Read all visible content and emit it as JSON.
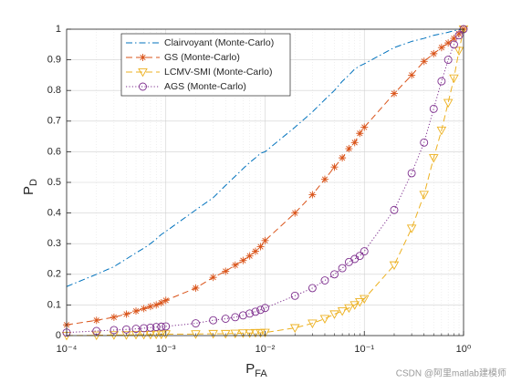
{
  "chart_data": {
    "type": "line",
    "xlabel": "P",
    "xlabel_sub": "FA",
    "ylabel": "P",
    "ylabel_sub": "D",
    "xscale": "log",
    "xlim": [
      0.0001,
      1
    ],
    "ylim": [
      0,
      1
    ],
    "xticks": [
      {
        "value": 0.0001,
        "label": "10⁻⁴"
      },
      {
        "value": 0.001,
        "label": "10⁻³"
      },
      {
        "value": 0.01,
        "label": "10⁻²"
      },
      {
        "value": 0.1,
        "label": "10⁻¹"
      },
      {
        "value": 1,
        "label": "10⁰"
      }
    ],
    "yticks": [
      0,
      0.1,
      0.2,
      0.3,
      0.4,
      0.5,
      0.6,
      0.7,
      0.8,
      0.9,
      1
    ],
    "grid": true,
    "minor_grid": true,
    "legend": "top-left",
    "x": [
      0.0001,
      0.0002,
      0.0003,
      0.0004,
      0.0005,
      0.0006,
      0.0007,
      0.0008,
      0.0009,
      0.001,
      0.002,
      0.003,
      0.004,
      0.005,
      0.006,
      0.007,
      0.008,
      0.009,
      0.01,
      0.02,
      0.03,
      0.04,
      0.05,
      0.06,
      0.07,
      0.08,
      0.09,
      0.1,
      0.2,
      0.3,
      0.4,
      0.5,
      0.6,
      0.7,
      0.8,
      0.9,
      1
    ],
    "series": [
      {
        "name": "Clairvoyant (Monte-Carlo)",
        "color": "#0072BD",
        "dash": "dashdot",
        "marker": "none",
        "values": [
          0.16,
          0.2,
          0.225,
          0.25,
          0.27,
          0.285,
          0.3,
          0.315,
          0.33,
          0.34,
          0.41,
          0.45,
          0.49,
          0.52,
          0.545,
          0.565,
          0.58,
          0.595,
          0.6,
          0.68,
          0.73,
          0.77,
          0.8,
          0.83,
          0.85,
          0.87,
          0.88,
          0.887,
          0.94,
          0.96,
          0.97,
          0.98,
          0.985,
          0.99,
          0.995,
          0.998,
          1
        ]
      },
      {
        "name": "GS (Monte-Carlo)",
        "color": "#D95319",
        "dash": "dashed",
        "marker": "asterisk",
        "values": [
          0.035,
          0.05,
          0.06,
          0.07,
          0.08,
          0.088,
          0.095,
          0.1,
          0.107,
          0.115,
          0.155,
          0.19,
          0.21,
          0.23,
          0.245,
          0.26,
          0.275,
          0.29,
          0.31,
          0.4,
          0.46,
          0.51,
          0.55,
          0.58,
          0.61,
          0.63,
          0.66,
          0.68,
          0.79,
          0.85,
          0.895,
          0.92,
          0.94,
          0.955,
          0.97,
          0.985,
          1
        ]
      },
      {
        "name": "LCMV-SMI (Monte-Carlo)",
        "color": "#EDB120",
        "dash": "dashed",
        "marker": "triangle-down",
        "values": [
          0,
          0.001,
          0.002,
          0.002,
          0.003,
          0.003,
          0.003,
          0.004,
          0.004,
          0.005,
          0.005,
          0.006,
          0.006,
          0.007,
          0.008,
          0.008,
          0.009,
          0.009,
          0.01,
          0.025,
          0.04,
          0.055,
          0.07,
          0.08,
          0.09,
          0.1,
          0.11,
          0.12,
          0.23,
          0.35,
          0.46,
          0.58,
          0.67,
          0.76,
          0.84,
          0.93,
          1
        ]
      },
      {
        "name": "AGS (Monte-Carlo)",
        "color": "#7E2F8E",
        "dash": "dotted",
        "marker": "circle",
        "values": [
          0.01,
          0.015,
          0.018,
          0.02,
          0.022,
          0.024,
          0.026,
          0.028,
          0.029,
          0.03,
          0.04,
          0.05,
          0.055,
          0.06,
          0.066,
          0.072,
          0.078,
          0.084,
          0.09,
          0.13,
          0.155,
          0.18,
          0.2,
          0.22,
          0.24,
          0.25,
          0.26,
          0.275,
          0.41,
          0.53,
          0.63,
          0.74,
          0.83,
          0.9,
          0.95,
          0.98,
          1
        ]
      }
    ],
    "watermark": "CSDN @阿里matlab建模师"
  }
}
